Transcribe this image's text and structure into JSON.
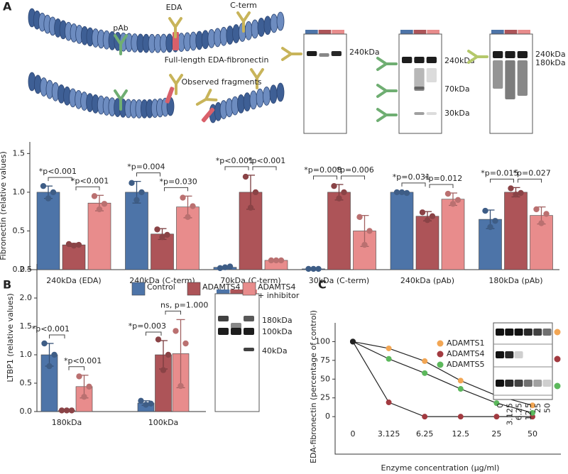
{
  "panels": {
    "a": "A",
    "b": "B",
    "c": "C"
  },
  "diagram": {
    "pab": "pAb",
    "eda": "EDA",
    "cterm": "C-term",
    "full_length": "Full-length EDA-fibronectin",
    "fragments": "Observed fragments"
  },
  "blots": {
    "a_eda": [
      "240kDa"
    ],
    "a_cterm": [
      "240kDa",
      "70kDa",
      "30kDa"
    ],
    "a_pab": [
      "240kDa",
      "180kDa"
    ],
    "b_ltbp1": [
      "180kDa",
      "100kDa",
      "40kDa"
    ]
  },
  "chart_data": [
    {
      "type": "bar",
      "y_label": "Fibronectin (relative values)",
      "categories": [
        "240kDa (EDA)",
        "240kDa (C-term)",
        "70kDa (C-term)",
        "30kDa (C-term)",
        "240kDa (pAb)",
        "180kDa (pAb)"
      ],
      "series": [
        {
          "color": "#4d74a8",
          "values": [
            1.0,
            1.0,
            0.03,
            0.01,
            1.0,
            0.65
          ],
          "errors": [
            0.08,
            0.14,
            0.01,
            0.01,
            0.01,
            0.12
          ],
          "points": [
            [
              1.08,
              0.92,
              1.0
            ],
            [
              1.12,
              0.9,
              1.0
            ],
            [
              0.02,
              0.03,
              0.04
            ],
            [
              0.01,
              0.01,
              0.01
            ],
            [
              1.0,
              1.0,
              0.99
            ],
            [
              0.76,
              0.55,
              0.63
            ]
          ]
        },
        {
          "color": "#ad5458",
          "values": [
            0.32,
            0.46,
            1.0,
            1.0,
            0.69,
            1.0
          ],
          "errors": [
            0.02,
            0.07,
            0.22,
            0.1,
            0.06,
            0.06
          ],
          "points": [
            [
              0.33,
              0.31,
              0.32
            ],
            [
              0.52,
              0.42,
              0.45
            ],
            [
              1.2,
              0.8,
              1.0
            ],
            [
              1.08,
              0.92,
              1.0
            ],
            [
              0.74,
              0.64,
              0.69
            ],
            [
              1.05,
              0.97,
              0.99
            ]
          ]
        },
        {
          "color": "#e88c8c",
          "values": [
            0.86,
            0.81,
            0.12,
            0.5,
            0.91,
            0.7
          ],
          "errors": [
            0.1,
            0.14,
            0.01,
            0.2,
            0.08,
            0.11
          ],
          "points": [
            [
              0.95,
              0.78,
              0.85
            ],
            [
              0.93,
              0.68,
              0.82
            ],
            [
              0.12,
              0.12,
              0.12
            ],
            [
              0.68,
              0.32,
              0.5
            ],
            [
              0.98,
              0.85,
              0.9
            ],
            [
              0.78,
              0.6,
              0.72
            ]
          ]
        }
      ],
      "comparisons": [
        [
          "*p<0.001",
          "*p<0.001"
        ],
        [
          "*p=0.004",
          "*p=0.030"
        ],
        [
          "*p<0.001",
          "*p<0.001"
        ],
        [
          "*p=0.008",
          "*p=0.006"
        ],
        [
          "*p=0.031",
          "*p=0.012"
        ],
        [
          "*p=0.015",
          "*p=0.027"
        ]
      ],
      "ylim": [
        0,
        1.65
      ],
      "yticks": [
        {
          "value": 0,
          "label": "0.0"
        },
        {
          "value": 0.5,
          "label": "0.5"
        },
        {
          "value": 1,
          "label": "1.0"
        },
        {
          "value": 1.5,
          "label": "1.5"
        }
      ]
    },
    {
      "type": "bar",
      "y_label": "LTBP1 (relative values)",
      "categories": [
        "180kDa",
        "100kDa"
      ],
      "series": [
        {
          "name": "Control",
          "color": "#4d74a8",
          "values": [
            1.0,
            0.15
          ],
          "errors": [
            0.2,
            0.04
          ],
          "points": [
            [
              1.2,
              0.8,
              1.0
            ],
            [
              0.19,
              0.12,
              0.14
            ]
          ]
        },
        {
          "name": "ADAMTS4",
          "color": "#ad5458",
          "values": [
            0.02,
            1.0
          ],
          "errors": [
            0.01,
            0.25
          ],
          "points": [
            [
              0.02,
              0.02,
              0.02
            ],
            [
              1.27,
              0.73,
              1.0
            ]
          ]
        },
        {
          "name": "ADAMTS4 + inhibitor",
          "color": "#e88c8c",
          "values": [
            0.44,
            1.02
          ],
          "errors": [
            0.2,
            0.6
          ],
          "points": [
            [
              0.62,
              0.26,
              0.44
            ],
            [
              1.42,
              0.45,
              1.2
            ]
          ]
        }
      ],
      "comparisons": [
        [
          "*p<0.001",
          "*p<0.001"
        ],
        [
          "*p=0.003",
          "ns, p=1.000"
        ]
      ],
      "ylim": [
        0,
        2.6
      ],
      "yticks": [
        {
          "value": 0,
          "label": "0.0"
        },
        {
          "value": 0.5,
          "label": "0.5"
        },
        {
          "value": 1,
          "label": "1.0"
        },
        {
          "value": 1.5,
          "label": "1.5"
        },
        {
          "value": 2,
          "label": "2.0"
        },
        {
          "value": 2.5,
          "label": "2.5"
        }
      ]
    },
    {
      "type": "line",
      "x_label": "Enzyme concentration (µg/ml)",
      "y_label": "EDA-fibronectin (percentage of control)",
      "categories": [
        "0",
        "3.125",
        "6.25",
        "12.5",
        "25",
        "50"
      ],
      "series": [
        {
          "name": "ADAMTS1",
          "color": "#f2a654",
          "values": [
            100,
            91,
            74,
            48,
            28,
            15
          ]
        },
        {
          "name": "ADAMTS4",
          "color": "#a23a40",
          "values": [
            100,
            19,
            0,
            0,
            0,
            0
          ]
        },
        {
          "name": "ADAMTS5",
          "color": "#5cb85c",
          "values": [
            100,
            77,
            58,
            37,
            18,
            5
          ]
        }
      ],
      "ylim": [
        -50,
        125
      ],
      "yticks": [
        0,
        25,
        50,
        75,
        100
      ]
    }
  ]
}
